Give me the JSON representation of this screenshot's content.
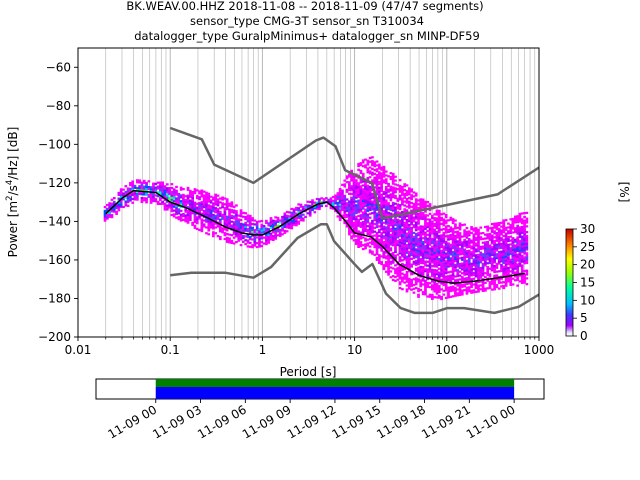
{
  "title_lines": [
    "BK.WEAV.00.HHZ   2018-11-08 -- 2018-11-09  (47/47 segments)",
    "sensor_type CMG-3T sensor_sn T310034",
    "datalogger_type GuralpMinimus+ datalogger_sn MINP-DF59"
  ],
  "chart_data": [
    {
      "type": "heatmap",
      "title": "BK.WEAV.00.HHZ   2018-11-08 -- 2018-11-09  (47/47 segments)",
      "xlabel": "Period [s]",
      "ylabel": "Power [m²/s⁴/Hz] [dB]",
      "x_scale": "log",
      "xlim": [
        0.01,
        1000
      ],
      "ylim": [
        -200,
        -50
      ],
      "x_ticks": [
        0.01,
        0.1,
        1,
        10,
        100,
        1000
      ],
      "x_tick_labels": [
        "0.01",
        "0.1",
        "1",
        "10",
        "100",
        "1000"
      ],
      "y_ticks": [
        -200,
        -180,
        -160,
        -140,
        -120,
        -100,
        -80,
        -60
      ],
      "y_tick_labels": [
        "−200",
        "−180",
        "−160",
        "−140",
        "−120",
        "−100",
        "−80",
        "−60"
      ],
      "grid": "vertical",
      "colorbar": {
        "label": "[%]",
        "range": [
          0,
          30
        ],
        "ticks": [
          0,
          5,
          10,
          15,
          20,
          25,
          30
        ],
        "tick_labels": [
          "0",
          "5",
          "10",
          "15",
          "20",
          "25",
          "30"
        ],
        "colormap": "pqlx"
      },
      "series": [
        {
          "name": "",
          "role": "noise model upper",
          "color": "#666666",
          "x": [
            0.1,
            0.22,
            0.3,
            0.8,
            3.8,
            4.6,
            6.2,
            7.9,
            15.4,
            20,
            354.8,
            1000
          ],
          "y": [
            -91.5,
            -97.4,
            -110.5,
            -120,
            -98,
            -96.5,
            -101,
            -113.5,
            -120,
            -138.5,
            -126,
            -112
          ]
        },
        {
          "name": "",
          "role": "noise model lower",
          "color": "#666666",
          "x": [
            0.1,
            0.17,
            0.4,
            0.8,
            1.24,
            2.4,
            4.3,
            5,
            6,
            10,
            12,
            15.6,
            21.9,
            31.6,
            45,
            70,
            101,
            154,
            328,
            600,
            1000
          ],
          "y": [
            -168,
            -166.7,
            -166.7,
            -169.2,
            -163.7,
            -148.6,
            -141.5,
            -141.5,
            -150.3,
            -162.2,
            -166.2,
            -162.1,
            -177.5,
            -185,
            -187.5,
            -187.5,
            -185,
            -185,
            -187.5,
            -184.4,
            -178
          ]
        },
        {
          "name": "",
          "role": "mean PSD",
          "color": "#000000",
          "x": [
            0.02,
            0.03,
            0.04,
            0.07,
            0.1,
            0.15,
            0.25,
            0.4,
            0.6,
            0.8,
            1.0,
            1.5,
            2.5,
            4,
            5,
            6,
            8,
            10,
            15,
            20,
            30,
            50,
            80,
            120,
            200,
            400,
            700
          ],
          "y": [
            -136,
            -128,
            -124,
            -125,
            -130,
            -133,
            -138,
            -143,
            -146,
            -147,
            -147,
            -143,
            -136,
            -131,
            -130,
            -133,
            -140,
            -146,
            -148,
            -153,
            -162,
            -168,
            -171,
            -172,
            -171,
            -169,
            -167
          ]
        }
      ],
      "density_band": {
        "x": [
          0.02,
          0.03,
          0.04,
          0.07,
          0.1,
          0.15,
          0.25,
          0.4,
          0.6,
          0.8,
          1.0,
          1.5,
          2.5,
          4,
          5,
          6,
          8,
          10,
          15,
          20,
          30,
          50,
          80,
          120,
          200,
          400,
          700
        ],
        "low": [
          -140,
          -134,
          -130,
          -131,
          -137,
          -142,
          -147,
          -151,
          -153,
          -154,
          -153,
          -148,
          -141,
          -134,
          -132,
          -136,
          -145,
          -153,
          -157,
          -165,
          -175,
          -180,
          -181,
          -179,
          -177,
          -175,
          -173
        ],
        "high": [
          -132,
          -122,
          -119,
          -119,
          -121,
          -123,
          -125,
          -128,
          -135,
          -139,
          -140,
          -137,
          -131,
          -128,
          -128,
          -127,
          -117,
          -110,
          -107,
          -112,
          -118,
          -128,
          -134,
          -140,
          -144,
          -140,
          -135
        ]
      }
    },
    {
      "type": "bar",
      "title": "",
      "xlabel": "",
      "ylabel": "",
      "xlim": [
        "11-08 20:00",
        "11-10 02:00"
      ],
      "x_tick_labels": [
        "11-09 00",
        "11-09 03",
        "11-09 06",
        "11-09 09",
        "11-09 12",
        "11-09 15",
        "11-09 18",
        "11-09 21",
        "11-10 00"
      ],
      "series": [
        {
          "name": "",
          "color": "#008000",
          "start": "11-09 00",
          "end": "11-10 00"
        },
        {
          "name": "",
          "color": "#0000ff",
          "start": "11-09 00",
          "end": "11-10 00"
        }
      ]
    }
  ]
}
